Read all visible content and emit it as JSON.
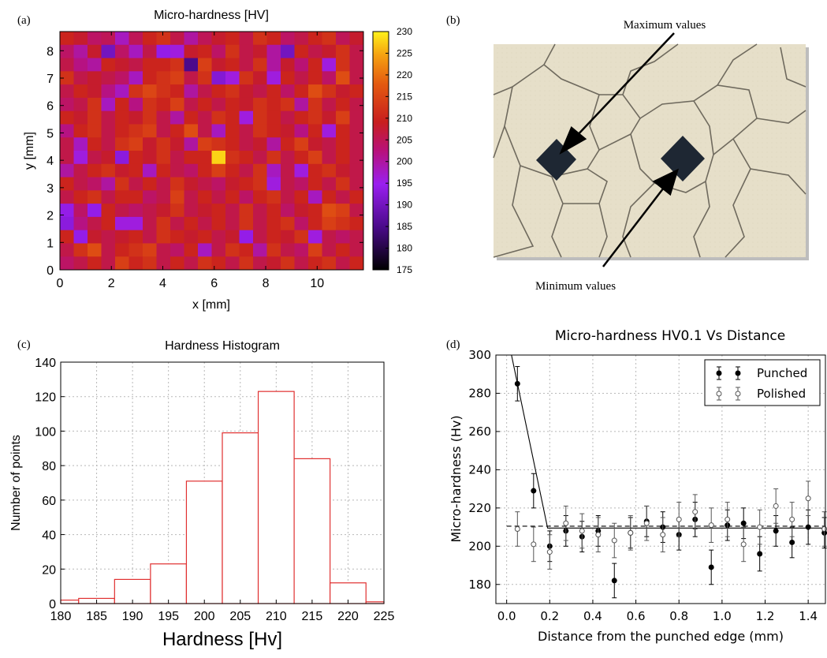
{
  "panels": {
    "a": "(a)",
    "b": "(b)",
    "c": "(c)",
    "d": "(d)"
  },
  "chart_data": [
    {
      "id": "a",
      "type": "heatmap",
      "title": "Micro-hardness [HV]",
      "xlabel": "x [mm]",
      "ylabel": "y [mm]",
      "xlim": [
        0,
        11.8
      ],
      "ylim": [
        0,
        8.7
      ],
      "xticks": [
        "0",
        "2",
        "4",
        "6",
        "8",
        "10"
      ],
      "yticks": [
        "0",
        "1",
        "2",
        "3",
        "4",
        "5",
        "6",
        "7",
        "8"
      ],
      "colorbar": {
        "min": 175,
        "max": 230,
        "ticks": [
          "175",
          "180",
          "185",
          "190",
          "195",
          "200",
          "205",
          "210",
          "215",
          "220",
          "225",
          "230"
        ]
      },
      "rows_top_to_bottom": [
        [
          210,
          208,
          204,
          205,
          198,
          205,
          210,
          212,
          206,
          200,
          205,
          208,
          210,
          206,
          212,
          210,
          204,
          206,
          210,
          212,
          205,
          208
        ],
        [
          204,
          200,
          208,
          190,
          204,
          198,
          206,
          194,
          196,
          208,
          210,
          204,
          212,
          206,
          208,
          200,
          190,
          210,
          206,
          208,
          212,
          206
        ],
        [
          206,
          202,
          200,
          210,
          208,
          206,
          210,
          210,
          212,
          185,
          214,
          208,
          210,
          206,
          212,
          200,
          208,
          203,
          210,
          196,
          212,
          206
        ],
        [
          212,
          206,
          208,
          206,
          204,
          198,
          210,
          212,
          214,
          206,
          212,
          192,
          196,
          212,
          208,
          196,
          210,
          206,
          210,
          204,
          216,
          206
        ],
        [
          206,
          210,
          208,
          202,
          198,
          212,
          215,
          212,
          210,
          200,
          206,
          210,
          212,
          208,
          206,
          210,
          204,
          210,
          216,
          212,
          208,
          210
        ],
        [
          204,
          206,
          212,
          198,
          210,
          202,
          212,
          210,
          214,
          206,
          210,
          206,
          210,
          208,
          212,
          210,
          212,
          200,
          212,
          206,
          210,
          206
        ],
        [
          210,
          208,
          212,
          206,
          210,
          208,
          212,
          206,
          200,
          210,
          206,
          212,
          210,
          196,
          212,
          210,
          206,
          210,
          212,
          208,
          214,
          206
        ],
        [
          202,
          210,
          212,
          206,
          210,
          212,
          214,
          206,
          210,
          216,
          206,
          198,
          210,
          206,
          212,
          210,
          208,
          202,
          210,
          196,
          210,
          206
        ],
        [
          206,
          198,
          210,
          206,
          212,
          214,
          208,
          212,
          208,
          200,
          214,
          212,
          210,
          206,
          208,
          200,
          210,
          214,
          208,
          206,
          210,
          206
        ],
        [
          206,
          196,
          206,
          208,
          193,
          210,
          208,
          212,
          206,
          210,
          210,
          228,
          212,
          210,
          206,
          212,
          206,
          210,
          214,
          206,
          210,
          206
        ],
        [
          200,
          206,
          210,
          212,
          208,
          210,
          198,
          210,
          206,
          204,
          210,
          214,
          210,
          206,
          212,
          198,
          206,
          196,
          210,
          212,
          208,
          206
        ],
        [
          210,
          206,
          204,
          200,
          212,
          206,
          210,
          206,
          212,
          208,
          206,
          204,
          208,
          210,
          212,
          196,
          206,
          204,
          210,
          206,
          212,
          206
        ],
        [
          206,
          210,
          212,
          206,
          210,
          210,
          204,
          206,
          214,
          206,
          210,
          206,
          210,
          204,
          210,
          212,
          206,
          210,
          198,
          210,
          206,
          210
        ],
        [
          194,
          204,
          194,
          210,
          206,
          204,
          206,
          208,
          212,
          206,
          208,
          210,
          206,
          212,
          206,
          210,
          204,
          208,
          210,
          216,
          214,
          206
        ],
        [
          193,
          202,
          206,
          210,
          196,
          196,
          206,
          212,
          206,
          210,
          206,
          210,
          206,
          212,
          206,
          210,
          212,
          204,
          210,
          214,
          212,
          210
        ],
        [
          210,
          194,
          208,
          206,
          208,
          210,
          206,
          212,
          210,
          208,
          210,
          206,
          208,
          194,
          206,
          210,
          208,
          212,
          196,
          206,
          204,
          206
        ],
        [
          206,
          212,
          216,
          206,
          210,
          212,
          214,
          206,
          204,
          210,
          198,
          206,
          212,
          210,
          200,
          212,
          206,
          204,
          214,
          206,
          210,
          206
        ],
        [
          204,
          206,
          210,
          206,
          214,
          210,
          212,
          206,
          210,
          206,
          212,
          210,
          206,
          212,
          206,
          208,
          212,
          206,
          210,
          212,
          206,
          210
        ]
      ]
    },
    {
      "id": "b",
      "type": "image",
      "annotations": [
        "Maximum values",
        "Minimum values"
      ]
    },
    {
      "id": "c",
      "type": "bar",
      "title": "Hardness Histogram",
      "xlabel": "Hardness [Hv]",
      "ylabel": "Number of points",
      "xlim": [
        180,
        225
      ],
      "ylim": [
        0,
        140
      ],
      "xticks": [
        "180",
        "185",
        "190",
        "195",
        "200",
        "205",
        "210",
        "215",
        "220",
        "225"
      ],
      "yticks": [
        "0",
        "20",
        "40",
        "60",
        "80",
        "100",
        "120",
        "140"
      ],
      "bin_edges": [
        177.5,
        182.5,
        187.5,
        192.5,
        197.5,
        202.5,
        207.5,
        212.5,
        217.5,
        222.5,
        227.5
      ],
      "values": [
        2,
        3,
        14,
        23,
        71,
        99,
        123,
        84,
        12,
        1
      ]
    },
    {
      "id": "d",
      "type": "scatter",
      "title": "Micro-hardness HV0.1 Vs Distance",
      "xlabel": "Distance from the punched edge (mm)",
      "ylabel": "Micro-hardness (Hv)",
      "xlim": [
        -0.05,
        1.48
      ],
      "ylim": [
        170,
        300
      ],
      "xticks": [
        "0.0",
        "0.2",
        "0.4",
        "0.6",
        "0.8",
        "1.0",
        "1.2",
        "1.4"
      ],
      "yticks": [
        "180",
        "200",
        "220",
        "240",
        "260",
        "280",
        "300"
      ],
      "legend": "top-right",
      "series": [
        {
          "name": "Punched",
          "x": [
            0.05,
            0.125,
            0.2,
            0.275,
            0.35,
            0.425,
            0.5,
            0.575,
            0.65,
            0.725,
            0.8,
            0.875,
            0.95,
            1.025,
            1.1,
            1.175,
            1.25,
            1.325,
            1.4,
            1.475
          ],
          "y": [
            285,
            229,
            200,
            208,
            205,
            208,
            182,
            207,
            213,
            210,
            206,
            214,
            189,
            211,
            212,
            196,
            208,
            202,
            210,
            207
          ],
          "err": [
            9,
            9,
            8,
            8,
            8,
            8,
            9,
            8,
            8,
            8,
            8,
            9,
            9,
            8,
            8,
            9,
            8,
            8,
            9,
            8
          ]
        },
        {
          "name": "Polished",
          "x": [
            0.05,
            0.125,
            0.2,
            0.275,
            0.35,
            0.425,
            0.5,
            0.575,
            0.65,
            0.725,
            0.8,
            0.875,
            0.95,
            1.025,
            1.1,
            1.175,
            1.25,
            1.325,
            1.4,
            1.475
          ],
          "y": [
            209,
            201,
            197,
            212,
            208,
            206,
            203,
            207,
            212,
            206,
            214,
            218,
            211,
            214,
            201,
            210,
            221,
            214,
            225,
            209
          ],
          "err": [
            9,
            9,
            9,
            9,
            9,
            9,
            9,
            9,
            9,
            9,
            9,
            9,
            9,
            9,
            9,
            9,
            9,
            9,
            9,
            9
          ]
        }
      ],
      "fit_lines": [
        {
          "style": "solid",
          "x": [
            0.0,
            0.19,
            1.48
          ],
          "y": [
            312,
            209.5,
            209.5
          ]
        },
        {
          "style": "dashed",
          "x": [
            0.0,
            1.48
          ],
          "y": [
            210.5,
            210.5
          ]
        }
      ]
    }
  ]
}
